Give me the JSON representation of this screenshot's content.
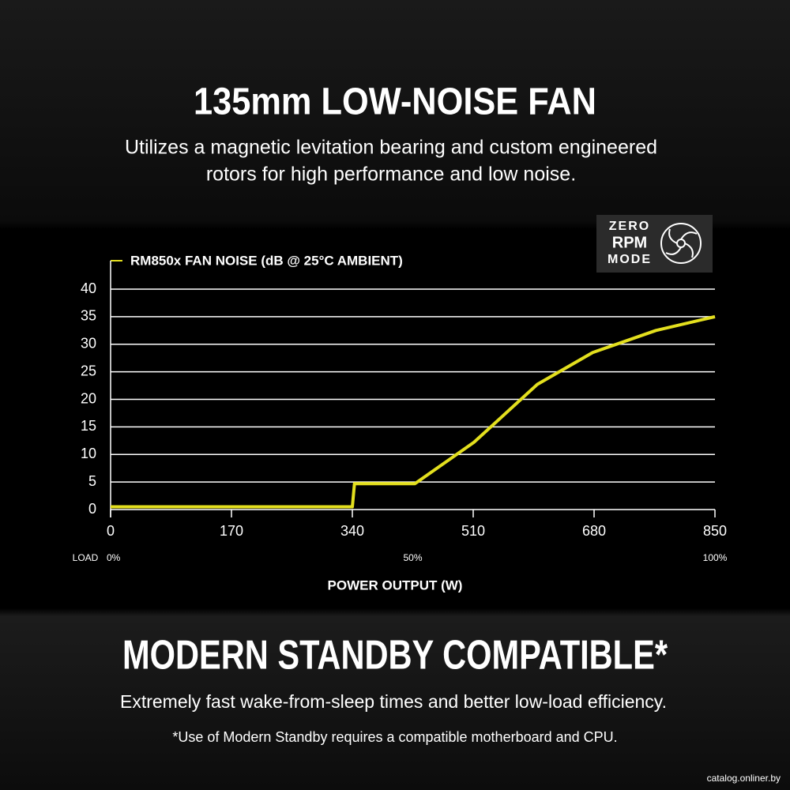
{
  "header": {
    "title": "135mm LOW-NOISE FAN",
    "subtitle_lines": [
      "Utilizes a magnetic levitation bearing and custom engineered",
      "rotors for high performance and low noise."
    ]
  },
  "badge": {
    "lines": [
      "ZERO",
      "RPM",
      "MODE"
    ]
  },
  "chart_data": {
    "type": "line",
    "title": "RM850x FAN NOISE (dB @ 25°C AMBIENT)",
    "x_label": "POWER OUTPUT (W)",
    "x": [
      0,
      340,
      343,
      428,
      511,
      600,
      678,
      767,
      850
    ],
    "values": [
      0.5,
      0.5,
      4.7,
      4.7,
      12.2,
      22.7,
      28.5,
      32.5,
      35
    ],
    "color": "#e3df1e",
    "xlim": [
      0,
      850
    ],
    "xticks": [
      0,
      170,
      340,
      510,
      680,
      850
    ],
    "ylim": [
      0,
      40
    ],
    "yticks": [
      0,
      5,
      10,
      15,
      20,
      25,
      30,
      35,
      40
    ],
    "grid": true,
    "load_axis": {
      "label": "LOAD",
      "ticks": [
        {
          "value": 0,
          "label": "0%"
        },
        {
          "value": 425,
          "label": "50%"
        },
        {
          "value": 850,
          "label": "100%"
        }
      ]
    }
  },
  "footer": {
    "heading": "MODERN STANDBY COMPATIBLE*",
    "text": "Extremely fast wake-from-sleep times and better low-load efficiency.",
    "note": "*Use of Modern Standby requires a compatible motherboard and CPU.",
    "watermark": "catalog.onliner.by"
  }
}
